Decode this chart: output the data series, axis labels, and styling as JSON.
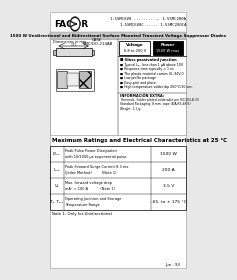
{
  "bg_color": "#e8e8e8",
  "page_bg": "#ffffff",
  "company": "FAGOR",
  "part_numbers_right": [
    "1.5SMC6V8 ........... 1.5SMC200A",
    "1.5SMC6V8C ..... 1.5SMC200CA"
  ],
  "title_text": "1500 W Unidirectional and Bidirectional Surface Mounted Transient Voltage Suppressor Diodes",
  "title_bar_color": "#c8c8c8",
  "case_label": "CASE\nSMC/DO-214AB",
  "voltage_label": "Voltage\n6.8 to 200 V",
  "power_label": "Power\n1500 W max",
  "features_header": "■ Glass passivated junction",
  "features": [
    "Typical Iₚₚₖ less than 1 μA above 10V",
    "Response time typically < 1 ns",
    "The plastic material carries UL 94V-0",
    "Low profile package",
    "Easy pick and place",
    "High temperature solder dip 260°C/10 sec."
  ],
  "mech_header": "INFORMACIÓN EXTRA:",
  "mech_lines": [
    "Terminals: Solder plated solderable per IEC303-B-33",
    "Standard Packaging: 8 mm. tape (EIA-RS-48 6)",
    "Weight: 1.1 g."
  ],
  "section_header": "Maximum Ratings and Electrical Characteristics at 25 °C",
  "table_rows": [
    {
      "symbol": "Pₘₗₖ",
      "description": "Peak Pulse Power Dissipation\nwith 10/1000 μs exponential pulse",
      "value": "1500 W"
    },
    {
      "symbol": "Iₘₗₖ",
      "description": "Peak Forward Surge Current 8.3 ms.\n(Jedec Method)         (Note 1)",
      "value": "200 A"
    },
    {
      "symbol": "Vₑ",
      "description": "Max. forward voltage drop\nmAⁱʿ = 100 A           (Note 1)",
      "value": "3.5 V"
    },
    {
      "symbol": "Tⱼ, Tₛₜₛ",
      "description": "Operating Junction and Storage\nTemperature Range",
      "value": "-65  to + 175 °C"
    }
  ],
  "note": "Note 1: Only for Unidirectional",
  "footer": "Jun - 93"
}
